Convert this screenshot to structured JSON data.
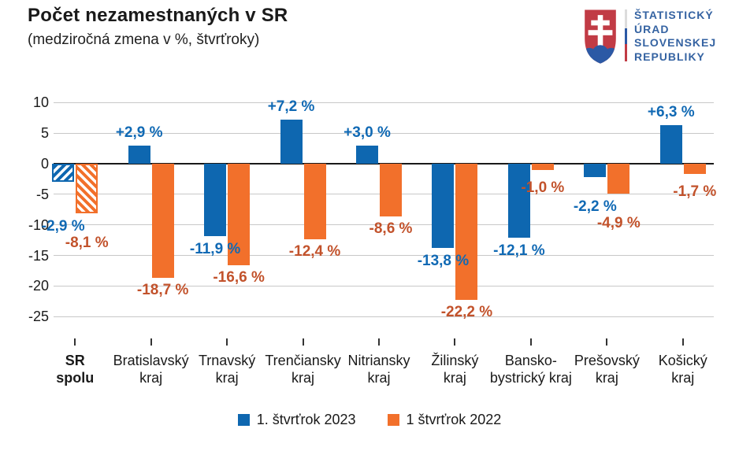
{
  "header": {
    "title": "Počet nezamestnaných v SR",
    "subtitle": "(medziročná zmena v %, štvrťroky)"
  },
  "logo": {
    "org_lines": [
      "ŠTATISTICKÝ",
      "ÚRAD",
      "SLOVENSKEJ",
      "REPUBLIKY"
    ],
    "text_color": "#3563a2",
    "shield_red": "#c13b45",
    "shield_blue": "#2b59a5",
    "flag_colors": [
      "#dcdcdc",
      "#2b59a5",
      "#c13b45"
    ]
  },
  "chart_data": {
    "type": "bar",
    "title": "Počet nezamestnaných v SR",
    "subtitle": "(medziročná zmena v %, štvrťroky)",
    "xlabel": "",
    "ylabel": "medziročná zmena v %",
    "ylim": [
      -25,
      10
    ],
    "yticks": [
      10,
      5,
      0,
      -5,
      -10,
      -15,
      -20,
      -25
    ],
    "grid": true,
    "legend_position": "bottom",
    "categories": [
      {
        "line1": "SR",
        "line2": "spolu",
        "bold": true,
        "hatched": true
      },
      {
        "line1": "Bratislavský",
        "line2": "kraj",
        "bold": false,
        "hatched": false
      },
      {
        "line1": "Trnavský",
        "line2": "kraj",
        "bold": false,
        "hatched": false
      },
      {
        "line1": "Trenčiansky",
        "line2": "kraj",
        "bold": false,
        "hatched": false
      },
      {
        "line1": "Nitriansky",
        "line2": "kraj",
        "bold": false,
        "hatched": false
      },
      {
        "line1": "Žilinský",
        "line2": "kraj",
        "bold": false,
        "hatched": false
      },
      {
        "line1": "Bansko-",
        "line2": "bystrický kraj",
        "bold": false,
        "hatched": false
      },
      {
        "line1": "Prešovský",
        "line2": "kraj",
        "bold": false,
        "hatched": false
      },
      {
        "line1": "Košický",
        "line2": "kraj",
        "bold": false,
        "hatched": false
      }
    ],
    "series": [
      {
        "name": "1. štvrťrok 2023",
        "color": "#0e67b0",
        "label_color": "#1069b4",
        "values": [
          -2.9,
          2.9,
          -11.9,
          7.2,
          3.0,
          -13.8,
          -12.1,
          -2.2,
          6.3
        ],
        "labels": [
          "-2,9 %",
          "+2,9 %",
          "-11,9 %",
          "+7,2 %",
          "+3,0 %",
          "-13,8 %",
          "-12,1 %",
          "-2,2 %",
          "+6,3 %"
        ]
      },
      {
        "name": "1 štvrťrok 2022",
        "color": "#f2702b",
        "label_color": "#c2522b",
        "values": [
          -8.1,
          -18.7,
          -16.6,
          -12.4,
          -8.6,
          -22.2,
          -1.0,
          -4.9,
          -1.7
        ],
        "labels": [
          "-8,1 %",
          "-18,7 %",
          "-16,6 %",
          "-12,4 %",
          "-8,6 %",
          "-22,2 %",
          "-1,0 %",
          "-4,9 %",
          "-1,7 %"
        ]
      }
    ]
  }
}
